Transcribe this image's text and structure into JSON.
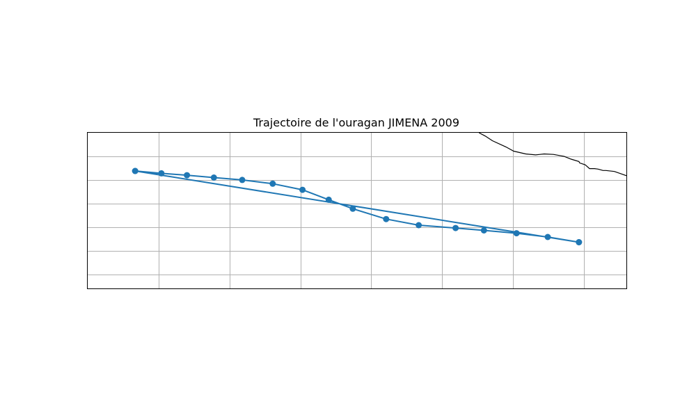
{
  "title": "Trajectoire de l'ouragan JIMENA 2009",
  "colors": {
    "track": "#1f77b4",
    "grid": "#b0b0b0",
    "coastline": "#000000",
    "frame": "#000000",
    "background": "#ffffff"
  },
  "chart_data": {
    "type": "line",
    "title": "Trajectoire de l'ouragan JIMENA 2009",
    "grid": true,
    "map_extent": {
      "lon": [
        -180,
        -104
      ],
      "lat": [
        -18,
        15
      ]
    },
    "gridlines": {
      "lon": [
        -170,
        -160,
        -150,
        -140,
        -130,
        -120,
        -110
      ],
      "lat": [
        -15,
        -10,
        -5,
        0,
        5,
        10
      ]
    },
    "series": [
      {
        "marker": "circle",
        "lon": [
          -110.7,
          -115.1,
          -119.5,
          -124.1,
          -128.1,
          -133.3,
          -137.9,
          -142.6,
          -146.0,
          -149.7,
          -153.9,
          -158.2,
          -162.2,
          -166.0,
          -169.6,
          -173.3,
          -110.7,
          -173.3
        ],
        "lat": [
          -8.2,
          -7.1,
          -6.3,
          -5.7,
          -5.2,
          -4.6,
          -3.3,
          -1.1,
          0.8,
          2.9,
          4.2,
          5.0,
          5.5,
          6.0,
          6.4,
          6.9,
          -8.2,
          6.9
        ]
      }
    ],
    "coastline": {
      "lon": [
        -124.8,
        -123.9,
        -122.9,
        -121.0,
        -119.9,
        -118.2,
        -116.8,
        -116.2,
        -115.6,
        -114.3,
        -112.8,
        -111.8,
        -110.7,
        -110.6,
        -109.8,
        -109.2,
        -108.5,
        -108.0,
        -107.3,
        -106.9,
        -105.7,
        -104.0
      ],
      "lat": [
        15.0,
        14.3,
        13.3,
        12.0,
        11.1,
        10.5,
        10.3,
        10.4,
        10.5,
        10.4,
        10.0,
        9.4,
        8.9,
        8.6,
        8.2,
        7.4,
        7.4,
        7.3,
        7.0,
        7.0,
        6.8,
        5.9
      ]
    }
  }
}
